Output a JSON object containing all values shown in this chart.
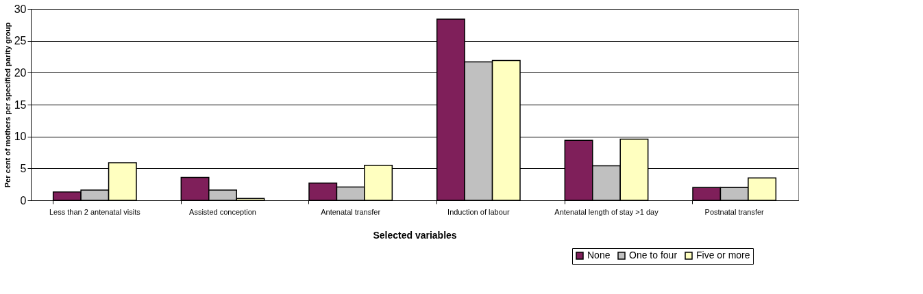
{
  "chart_data": {
    "type": "bar",
    "xlabel": "Selected variables",
    "ylabel": "Per cent of mothers per specified parity group",
    "categories": [
      "Less than 2 antenatal visits",
      "Assisted conception",
      "Antenatal transfer",
      "Induction of labour",
      "Antenatal length of stay >1 day",
      "Postnatal transfer"
    ],
    "series": [
      {
        "name": "None",
        "color": "#7f1f5a",
        "values": [
          1.3,
          3.6,
          2.7,
          28.4,
          9.4,
          2.0
        ]
      },
      {
        "name": "One to four",
        "color": "#c0c0c0",
        "values": [
          1.6,
          1.6,
          2.1,
          21.7,
          5.4,
          2.0
        ]
      },
      {
        "name": "Five or more",
        "color": "#ffffc0",
        "values": [
          5.9,
          0.3,
          5.5,
          21.9,
          9.6,
          3.5
        ]
      }
    ],
    "ylim": [
      0,
      30
    ],
    "yticks": [
      0,
      5,
      10,
      15,
      20,
      25,
      30
    ],
    "grid": "y",
    "legend": "bottom right"
  }
}
